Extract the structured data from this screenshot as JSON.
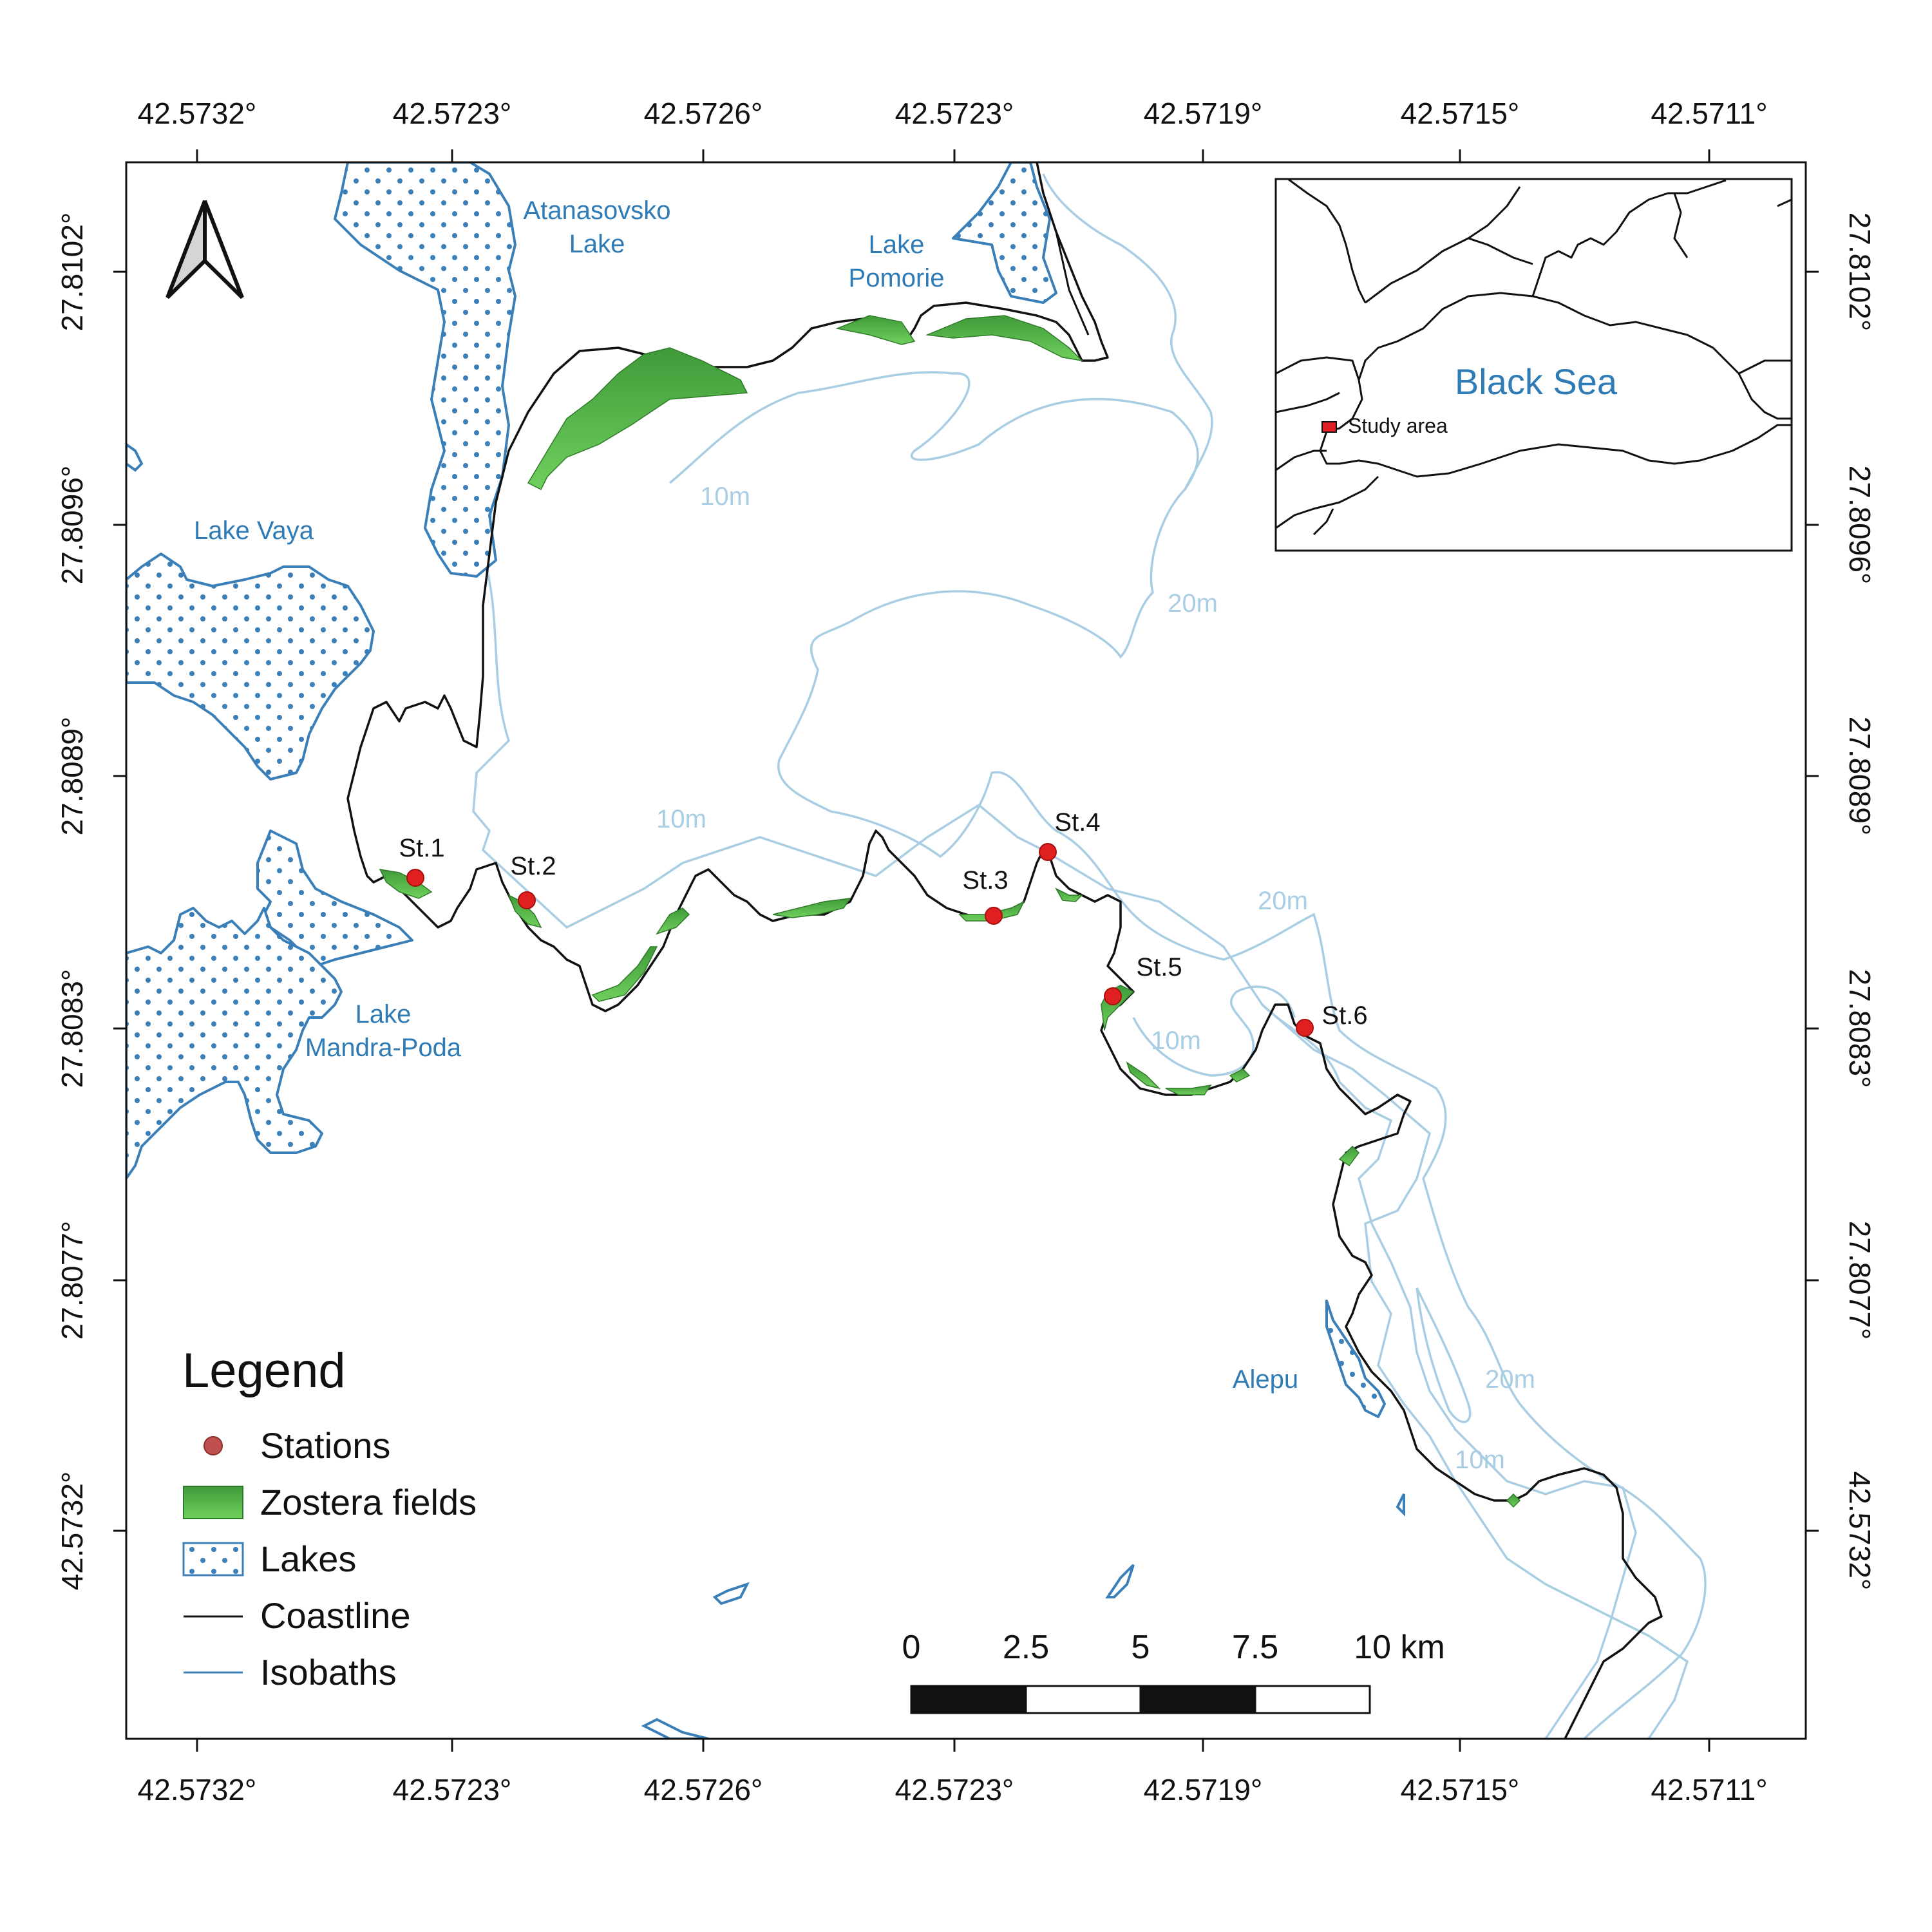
{
  "axes": {
    "top_ticks": [
      "42.5732°",
      "42.5723°",
      "42.5726°",
      "42.5723°",
      "42.5719°",
      "42.5715°",
      "42.5711°"
    ],
    "bottom_ticks": [
      "42.5732°",
      "42.5723°",
      "42.5726°",
      "42.5723°",
      "42.5719°",
      "42.5715°",
      "42.5711°"
    ],
    "left_ticks": [
      "27.8102°",
      "27.8096°",
      "27.8089°",
      "27.8083°",
      "27.8077°",
      "42.5732°"
    ],
    "right_ticks": [
      "27.8102°",
      "27.8096°",
      "27.8089°",
      "27.8083°",
      "27.8077°",
      "42.5732°"
    ]
  },
  "lakes": {
    "atanasovsko_1": "Atanasovsko",
    "atanasovsko_2": "Lake",
    "pomorie_1": "Lake",
    "pomorie_2": "Pomorie",
    "vaya": "Lake Vaya",
    "mandra_1": "Lake",
    "mandra_2": "Mandra-Poda",
    "alepu": "Alepu"
  },
  "isobaths": [
    "10m",
    "20m",
    "10m",
    "20m",
    "10m",
    "20m",
    "10m"
  ],
  "stations": [
    "St.1",
    "St.2",
    "St.3",
    "St.4",
    "St.5",
    "St.6"
  ],
  "inset": {
    "sea_label": "Black Sea",
    "study_label": "Study area"
  },
  "legend": {
    "title": "Legend",
    "items": [
      "Stations",
      "Zostera fields",
      "Lakes",
      "Coastline",
      "Isobaths"
    ]
  },
  "scale_bar": {
    "labels": [
      "0",
      "2.5",
      "5",
      "7.5",
      "10 km"
    ]
  },
  "colors": {
    "lake_outline": "#3a7fb7",
    "lake_dot": "#3a7fb7",
    "isobath": "#a9cde3",
    "coastline": "#111111",
    "zostera": "#57b84a",
    "zostera_dark": "#3d9636",
    "station": "#e02020",
    "legend_station": "#c0504d"
  }
}
